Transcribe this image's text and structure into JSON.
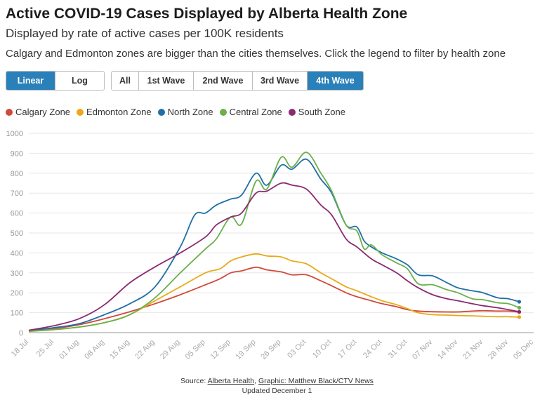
{
  "header": {
    "title": "Active COVID-19 Cases Displayed by Alberta Health Zone",
    "subtitle": "Displayed by rate of active cases per 100K residents",
    "description": "Calgary and Edmonton zones are bigger than the cities themselves. Click the legend to filter by health zone"
  },
  "scale_buttons": [
    {
      "label": "Linear",
      "active": true
    },
    {
      "label": "Log",
      "active": false
    }
  ],
  "range_buttons": [
    {
      "label": "All",
      "active": false
    },
    {
      "label": "1st Wave",
      "active": false
    },
    {
      "label": "2nd Wave",
      "active": false
    },
    {
      "label": "3rd Wave",
      "active": false
    },
    {
      "label": "4th Wave",
      "active": true
    }
  ],
  "footer": {
    "source_prefix": "Source: ",
    "source_link": "Alberta Health",
    "separator": ", ",
    "graphic_link": "Graphic: Matthew Black/CTV News",
    "updated": "Updated December 1"
  },
  "chart_data": {
    "type": "line",
    "title": "Active COVID-19 Cases Displayed by Alberta Health Zone",
    "subtitle": "Displayed by rate of active cases per 100K residents",
    "xlabel": "",
    "ylabel": "",
    "ylim": [
      0,
      1000
    ],
    "yticks": [
      0,
      100,
      200,
      300,
      400,
      500,
      600,
      700,
      800,
      900,
      1000
    ],
    "xlim": [
      "2021-07-18",
      "2021-12-05"
    ],
    "xticks": [
      "2021-07-18",
      "2021-07-25",
      "2021-08-01",
      "2021-08-08",
      "2021-08-15",
      "2021-08-22",
      "2021-08-29",
      "2021-09-05",
      "2021-09-12",
      "2021-09-19",
      "2021-09-26",
      "2021-10-03",
      "2021-10-10",
      "2021-10-17",
      "2021-10-24",
      "2021-10-31",
      "2021-11-07",
      "2021-11-14",
      "2021-11-21",
      "2021-11-28",
      "2021-12-05"
    ],
    "xtick_labels": [
      "18 Jul",
      "25 Jul",
      "01 Aug",
      "08 Aug",
      "15 Aug",
      "22 Aug",
      "29 Aug",
      "05 Sep",
      "12 Sep",
      "19 Sep",
      "26 Sep",
      "03 Oct",
      "10 Oct",
      "17 Oct",
      "24 Oct",
      "31 Oct",
      "07 Nov",
      "14 Nov",
      "21 Nov",
      "28 Nov",
      "05 Dec"
    ],
    "grid": "horizontal",
    "legend_position": "top-left",
    "series": [
      {
        "name": "Calgary Zone",
        "color": "#d04a3c",
        "points": [
          [
            "2021-07-18",
            8
          ],
          [
            "2021-07-25",
            20
          ],
          [
            "2021-08-01",
            40
          ],
          [
            "2021-08-08",
            70
          ],
          [
            "2021-08-15",
            105
          ],
          [
            "2021-08-22",
            145
          ],
          [
            "2021-08-29",
            190
          ],
          [
            "2021-09-05",
            240
          ],
          [
            "2021-09-09",
            270
          ],
          [
            "2021-09-12",
            300
          ],
          [
            "2021-09-15",
            310
          ],
          [
            "2021-09-19",
            328
          ],
          [
            "2021-09-22",
            315
          ],
          [
            "2021-09-26",
            305
          ],
          [
            "2021-09-29",
            290
          ],
          [
            "2021-10-03",
            290
          ],
          [
            "2021-10-07",
            260
          ],
          [
            "2021-10-10",
            235
          ],
          [
            "2021-10-14",
            200
          ],
          [
            "2021-10-17",
            180
          ],
          [
            "2021-10-21",
            160
          ],
          [
            "2021-10-24",
            145
          ],
          [
            "2021-10-28",
            130
          ],
          [
            "2021-10-31",
            115
          ],
          [
            "2021-11-03",
            108
          ],
          [
            "2021-11-07",
            105
          ],
          [
            "2021-11-11",
            104
          ],
          [
            "2021-11-14",
            104
          ],
          [
            "2021-11-18",
            108
          ],
          [
            "2021-11-21",
            110
          ],
          [
            "2021-11-25",
            108
          ],
          [
            "2021-11-28",
            108
          ],
          [
            "2021-12-01",
            103
          ]
        ]
      },
      {
        "name": "Edmonton Zone",
        "color": "#e9a91a",
        "points": [
          [
            "2021-07-18",
            6
          ],
          [
            "2021-07-25",
            15
          ],
          [
            "2021-08-01",
            28
          ],
          [
            "2021-08-08",
            50
          ],
          [
            "2021-08-15",
            90
          ],
          [
            "2021-08-22",
            160
          ],
          [
            "2021-08-29",
            230
          ],
          [
            "2021-09-05",
            300
          ],
          [
            "2021-09-09",
            320
          ],
          [
            "2021-09-12",
            360
          ],
          [
            "2021-09-15",
            380
          ],
          [
            "2021-09-19",
            395
          ],
          [
            "2021-09-22",
            385
          ],
          [
            "2021-09-26",
            380
          ],
          [
            "2021-09-29",
            360
          ],
          [
            "2021-10-03",
            345
          ],
          [
            "2021-10-07",
            300
          ],
          [
            "2021-10-10",
            270
          ],
          [
            "2021-10-14",
            230
          ],
          [
            "2021-10-17",
            210
          ],
          [
            "2021-10-21",
            180
          ],
          [
            "2021-10-24",
            160
          ],
          [
            "2021-10-28",
            140
          ],
          [
            "2021-10-31",
            120
          ],
          [
            "2021-11-03",
            100
          ],
          [
            "2021-11-07",
            90
          ],
          [
            "2021-11-11",
            88
          ],
          [
            "2021-11-14",
            86
          ],
          [
            "2021-11-18",
            84
          ],
          [
            "2021-11-21",
            82
          ],
          [
            "2021-11-25",
            80
          ],
          [
            "2021-11-28",
            80
          ],
          [
            "2021-12-01",
            78
          ]
        ]
      },
      {
        "name": "North Zone",
        "color": "#1f6fa6",
        "points": [
          [
            "2021-07-18",
            10
          ],
          [
            "2021-07-25",
            25
          ],
          [
            "2021-08-01",
            45
          ],
          [
            "2021-08-08",
            90
          ],
          [
            "2021-08-15",
            145
          ],
          [
            "2021-08-22",
            230
          ],
          [
            "2021-08-29",
            430
          ],
          [
            "2021-09-02",
            590
          ],
          [
            "2021-09-05",
            600
          ],
          [
            "2021-09-08",
            640
          ],
          [
            "2021-09-12",
            670
          ],
          [
            "2021-09-15",
            690
          ],
          [
            "2021-09-19",
            800
          ],
          [
            "2021-09-22",
            740
          ],
          [
            "2021-09-26",
            840
          ],
          [
            "2021-09-29",
            820
          ],
          [
            "2021-10-03",
            870
          ],
          [
            "2021-10-07",
            770
          ],
          [
            "2021-10-10",
            700
          ],
          [
            "2021-10-14",
            540
          ],
          [
            "2021-10-17",
            530
          ],
          [
            "2021-10-19",
            460
          ],
          [
            "2021-10-21",
            430
          ],
          [
            "2021-10-24",
            400
          ],
          [
            "2021-10-28",
            370
          ],
          [
            "2021-10-31",
            340
          ],
          [
            "2021-11-03",
            290
          ],
          [
            "2021-11-07",
            285
          ],
          [
            "2021-11-11",
            250
          ],
          [
            "2021-11-14",
            225
          ],
          [
            "2021-11-18",
            210
          ],
          [
            "2021-11-21",
            200
          ],
          [
            "2021-11-25",
            175
          ],
          [
            "2021-11-28",
            170
          ],
          [
            "2021-12-01",
            155
          ]
        ]
      },
      {
        "name": "Central Zone",
        "color": "#6ab04c",
        "points": [
          [
            "2021-07-18",
            7
          ],
          [
            "2021-07-25",
            15
          ],
          [
            "2021-08-01",
            28
          ],
          [
            "2021-08-08",
            50
          ],
          [
            "2021-08-15",
            90
          ],
          [
            "2021-08-22",
            175
          ],
          [
            "2021-08-29",
            300
          ],
          [
            "2021-09-05",
            420
          ],
          [
            "2021-09-08",
            470
          ],
          [
            "2021-09-12",
            580
          ],
          [
            "2021-09-15",
            545
          ],
          [
            "2021-09-19",
            760
          ],
          [
            "2021-09-22",
            720
          ],
          [
            "2021-09-26",
            880
          ],
          [
            "2021-09-29",
            830
          ],
          [
            "2021-10-03",
            905
          ],
          [
            "2021-10-07",
            800
          ],
          [
            "2021-10-10",
            710
          ],
          [
            "2021-10-14",
            540
          ],
          [
            "2021-10-17",
            510
          ],
          [
            "2021-10-19",
            420
          ],
          [
            "2021-10-21",
            440
          ],
          [
            "2021-10-24",
            390
          ],
          [
            "2021-10-28",
            350
          ],
          [
            "2021-10-31",
            320
          ],
          [
            "2021-11-03",
            245
          ],
          [
            "2021-11-07",
            240
          ],
          [
            "2021-11-11",
            215
          ],
          [
            "2021-11-14",
            200
          ],
          [
            "2021-11-18",
            170
          ],
          [
            "2021-11-21",
            165
          ],
          [
            "2021-11-25",
            150
          ],
          [
            "2021-11-28",
            145
          ],
          [
            "2021-12-01",
            125
          ]
        ]
      },
      {
        "name": "South Zone",
        "color": "#8b2a71",
        "points": [
          [
            "2021-07-18",
            12
          ],
          [
            "2021-07-25",
            35
          ],
          [
            "2021-08-01",
            70
          ],
          [
            "2021-08-08",
            140
          ],
          [
            "2021-08-15",
            250
          ],
          [
            "2021-08-22",
            330
          ],
          [
            "2021-08-29",
            400
          ],
          [
            "2021-09-05",
            480
          ],
          [
            "2021-09-08",
            540
          ],
          [
            "2021-09-12",
            580
          ],
          [
            "2021-09-15",
            600
          ],
          [
            "2021-09-19",
            700
          ],
          [
            "2021-09-22",
            710
          ],
          [
            "2021-09-26",
            750
          ],
          [
            "2021-09-29",
            740
          ],
          [
            "2021-10-03",
            720
          ],
          [
            "2021-10-07",
            640
          ],
          [
            "2021-10-10",
            590
          ],
          [
            "2021-10-14",
            470
          ],
          [
            "2021-10-17",
            430
          ],
          [
            "2021-10-21",
            370
          ],
          [
            "2021-10-24",
            340
          ],
          [
            "2021-10-28",
            300
          ],
          [
            "2021-10-31",
            260
          ],
          [
            "2021-11-03",
            225
          ],
          [
            "2021-11-07",
            190
          ],
          [
            "2021-11-11",
            170
          ],
          [
            "2021-11-14",
            160
          ],
          [
            "2021-11-18",
            145
          ],
          [
            "2021-11-21",
            135
          ],
          [
            "2021-11-25",
            125
          ],
          [
            "2021-11-28",
            115
          ],
          [
            "2021-12-01",
            105
          ]
        ]
      }
    ]
  }
}
